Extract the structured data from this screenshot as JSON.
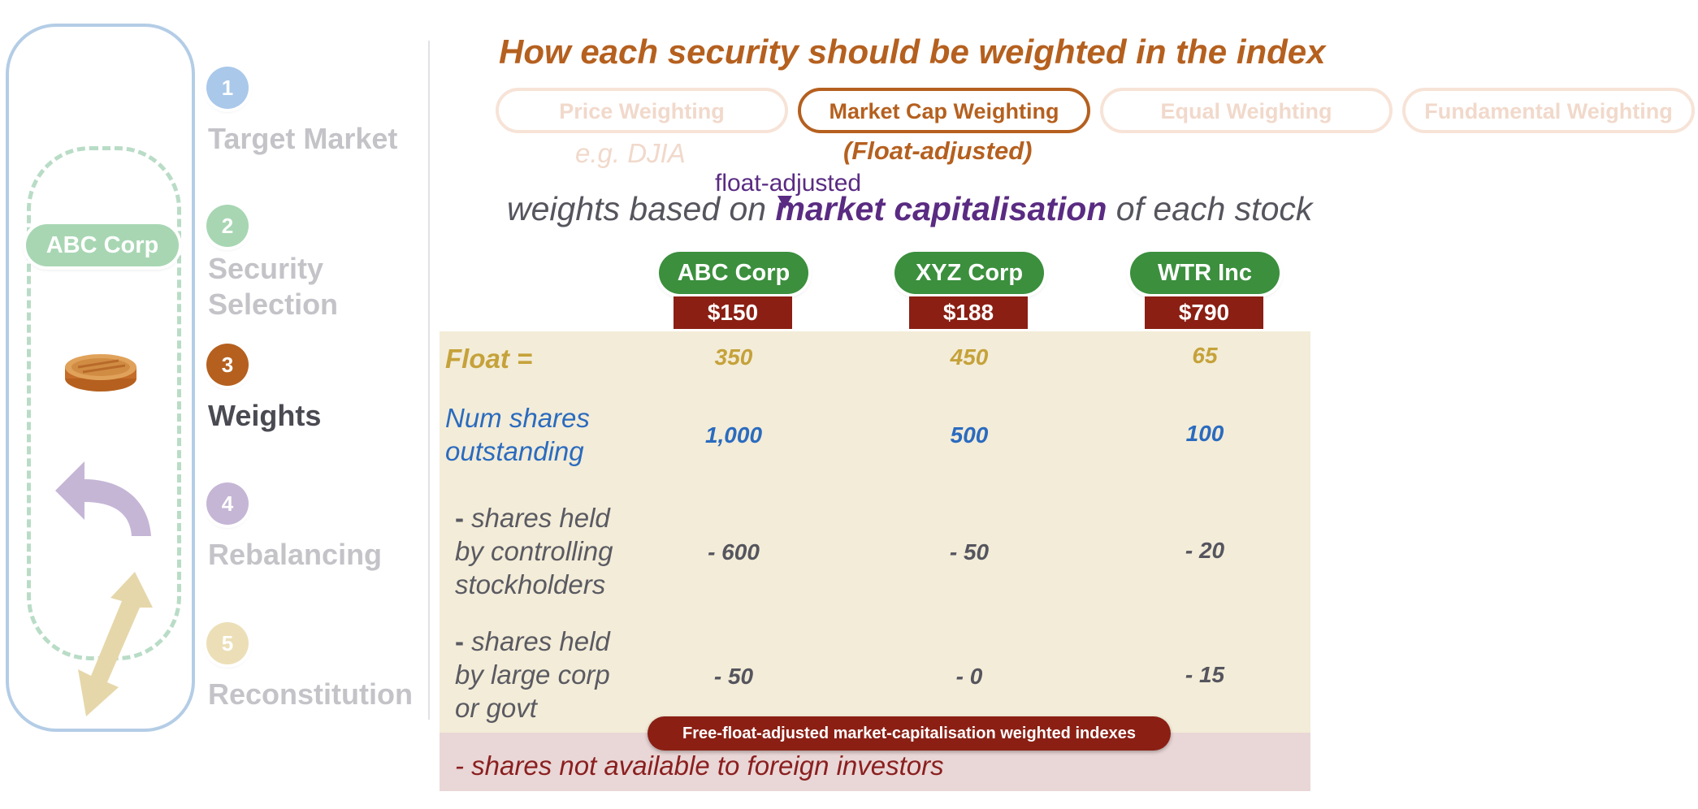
{
  "sidebar": {
    "selected_security": "ABC Corp",
    "icons": [
      "coin-icon",
      "back-arrow-icon",
      "double-arrow-icon"
    ]
  },
  "steps": [
    {
      "number": "1",
      "label": "Target Market",
      "color": "#a9c8ea"
    },
    {
      "number": "2",
      "label_line1": "Security",
      "label_line2": "Selection",
      "color": "#a8d6b3"
    },
    {
      "number": "3",
      "label": "Weights",
      "color": "#b5601f"
    },
    {
      "number": "4",
      "label": "Rebalancing",
      "color": "#c5b6d6"
    },
    {
      "number": "5",
      "label": "Reconstitution",
      "color": "#ecdfb7"
    }
  ],
  "header": {
    "title": "How each security should be weighted in the index",
    "methods": [
      "Price Weighting",
      "Market Cap Weighting",
      "Equal Weighting",
      "Fundamental Weighting"
    ],
    "price_example": "e.g. DJIA",
    "market_cap_note": "(Float-adjusted)"
  },
  "sentence": {
    "prefix": "weights based on ",
    "emphasis": "market capitalisation",
    "suffix": " of each stock",
    "annotation": "float-adjusted"
  },
  "companies": [
    {
      "name": "ABC Corp",
      "price": "$150",
      "float": "350",
      "shares": "1,000",
      "controlling": "- 600",
      "large_corp": "- 50"
    },
    {
      "name": "XYZ Corp",
      "price": "$188",
      "float": "450",
      "shares": "500",
      "controlling": "- 50",
      "large_corp": "- 0"
    },
    {
      "name": "WTR Inc",
      "price": "$790",
      "float": "65",
      "shares": "100",
      "controlling": "- 20",
      "large_corp": "- 15"
    }
  ],
  "rows": {
    "float": "Float =",
    "num_shares_line1": "Num shares",
    "num_shares_line2": "outstanding",
    "ctrl_dash": "-",
    "ctrl_line1": " shares held",
    "ctrl_line2": "by controlling",
    "ctrl_line3": "stockholders",
    "large_dash": "-",
    "large_line1": " shares held",
    "large_line2": "by large corp",
    "large_line3": "or govt",
    "foreign": "- shares not available to foreign investors"
  },
  "footer_badge": "Free-float-adjusted market-capitalisation weighted indexes"
}
